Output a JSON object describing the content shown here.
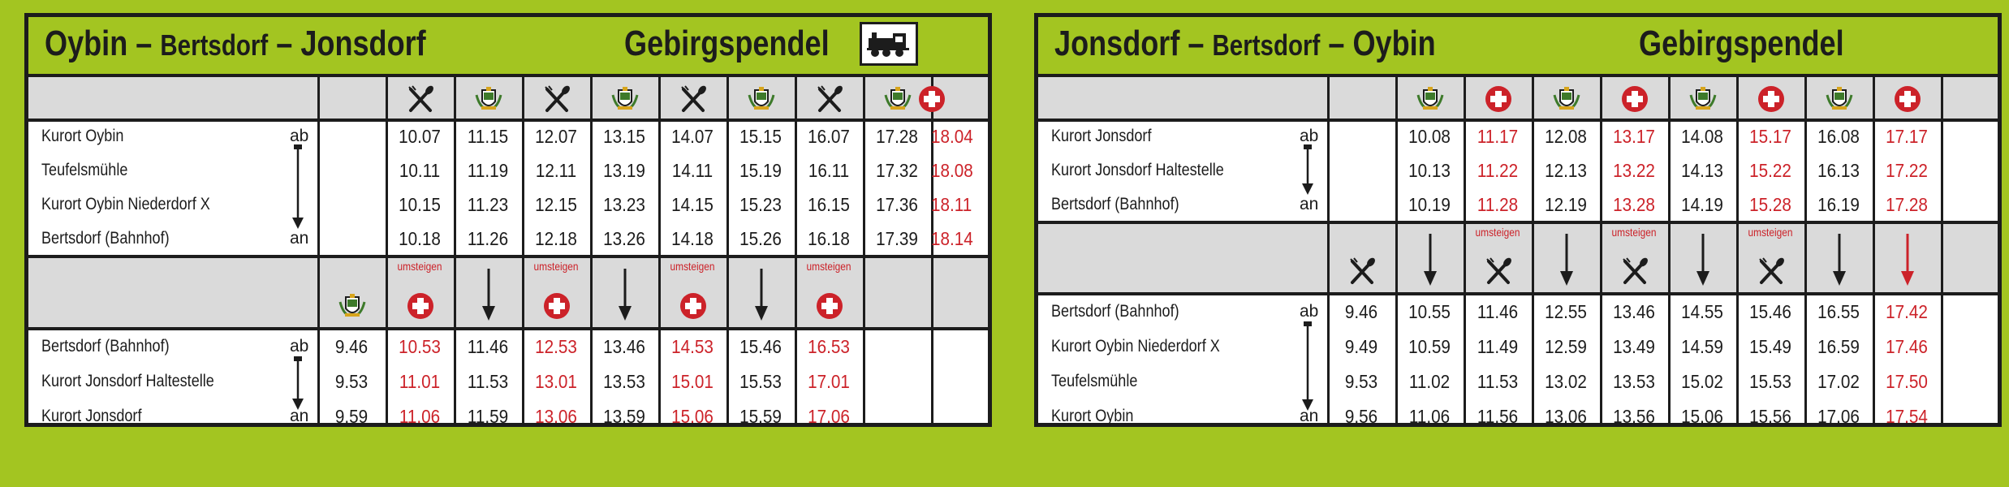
{
  "left": {
    "route_main": "Oybin",
    "route_sep1": " – ",
    "route_mid": "Bertsdorf",
    "route_sep2": " – ",
    "route_end": "Jonsdorf",
    "pendel": "Gebirgspendel",
    "loco_icon": "steam-locomotive-icon",
    "header_icons": [
      "utensils",
      "coat-of-arms",
      "utensils",
      "coat-of-arms",
      "utensils",
      "coat-of-arms",
      "utensils",
      "coat-of-arms",
      "red-cross"
    ],
    "top_stations": [
      {
        "name": "Kurort Oybin",
        "mark": "ab"
      },
      {
        "name": "Teufelsmühle",
        "mark": ""
      },
      {
        "name": "Kurort Oybin Niederdorf   X",
        "mark": ""
      },
      {
        "name": "Bertsdorf (Bahnhof)",
        "mark": "an"
      }
    ],
    "top_times": [
      [
        "10.07",
        "11.15",
        "12.07",
        "13.15",
        "14.07",
        "15.15",
        "16.07",
        "17.28",
        "18.04"
      ],
      [
        "10.11",
        "11.19",
        "12.11",
        "13.19",
        "14.11",
        "15.19",
        "16.11",
        "17.32",
        "18.08"
      ],
      [
        "10.15",
        "11.23",
        "12.15",
        "13.23",
        "14.15",
        "15.23",
        "16.15",
        "17.36",
        "18.11"
      ],
      [
        "10.18",
        "11.26",
        "12.18",
        "13.26",
        "14.18",
        "15.26",
        "16.18",
        "17.39",
        "18.14"
      ]
    ],
    "top_red_col": 8,
    "umsteigen": "umsteigen",
    "mid_icons": [
      "coat-of-arms",
      "red-cross",
      "down-arrow",
      "red-cross",
      "down-arrow",
      "red-cross",
      "down-arrow",
      "red-cross",
      "",
      ""
    ],
    "mid_umsteigen": [
      false,
      true,
      false,
      true,
      false,
      true,
      false,
      true,
      false,
      false
    ],
    "bottom_stations": [
      {
        "name": "Bertsdorf (Bahnhof)",
        "mark": "ab"
      },
      {
        "name": "Kurort Jonsdorf Haltestelle",
        "mark": ""
      },
      {
        "name": "Kurort Jonsdorf",
        "mark": "an"
      }
    ],
    "bottom_times": [
      [
        "9.46",
        "10.53",
        "11.46",
        "12.53",
        "13.46",
        "14.53",
        "15.46",
        "16.53",
        "",
        ""
      ],
      [
        "9.53",
        "11.01",
        "11.53",
        "13.01",
        "13.53",
        "15.01",
        "15.53",
        "17.01",
        "",
        ""
      ],
      [
        "9.59",
        "11.06",
        "11.59",
        "13.06",
        "13.59",
        "15.06",
        "15.59",
        "17.06",
        "",
        ""
      ]
    ],
    "bottom_red_cols": [
      1,
      3,
      5,
      7
    ]
  },
  "right": {
    "route_main": "Jonsdorf",
    "route_sep1": " – ",
    "route_mid": "Bertsdorf",
    "route_sep2": " – ",
    "route_end": "Oybin",
    "pendel": "Gebirgspendel",
    "header_icons": [
      "coat-of-arms",
      "red-cross",
      "coat-of-arms",
      "red-cross",
      "coat-of-arms",
      "red-cross",
      "coat-of-arms",
      "red-cross",
      ""
    ],
    "top_stations": [
      {
        "name": "Kurort Jonsdorf",
        "mark": "ab"
      },
      {
        "name": "Kurort Jonsdorf Haltestelle",
        "mark": ""
      },
      {
        "name": "Bertsdorf (Bahnhof)",
        "mark": "an"
      }
    ],
    "top_times": [
      [
        "10.08",
        "11.17",
        "12.08",
        "13.17",
        "14.08",
        "15.17",
        "16.08",
        "17.17",
        ""
      ],
      [
        "10.13",
        "11.22",
        "12.13",
        "13.22",
        "14.13",
        "15.22",
        "16.13",
        "17.22",
        ""
      ],
      [
        "10.19",
        "11.28",
        "12.19",
        "13.28",
        "14.19",
        "15.28",
        "16.19",
        "17.28",
        ""
      ]
    ],
    "top_red_cols": [
      1,
      3,
      5,
      7
    ],
    "umsteigen": "umsteigen",
    "mid_icons": [
      "utensils",
      "down-arrow",
      "utensils",
      "down-arrow",
      "utensils",
      "down-arrow",
      "utensils",
      "down-arrow",
      "red-down-arrow",
      ""
    ],
    "mid_umsteigen": [
      false,
      false,
      true,
      false,
      true,
      false,
      true,
      false,
      false,
      false
    ],
    "bottom_stations": [
      {
        "name": "Bertsdorf (Bahnhof)",
        "mark": "ab"
      },
      {
        "name": "Kurort Oybin Niederdorf   X",
        "mark": ""
      },
      {
        "name": "Teufelsmühle",
        "mark": ""
      },
      {
        "name": "Kurort Oybin",
        "mark": "an"
      }
    ],
    "bottom_times": [
      [
        "9.46",
        "10.55",
        "11.46",
        "12.55",
        "13.46",
        "14.55",
        "15.46",
        "16.55",
        "17.42",
        ""
      ],
      [
        "9.49",
        "10.59",
        "11.49",
        "12.59",
        "13.49",
        "14.59",
        "15.49",
        "16.59",
        "17.46",
        ""
      ],
      [
        "9.53",
        "11.02",
        "11.53",
        "13.02",
        "13.53",
        "15.02",
        "15.53",
        "17.02",
        "17.50",
        ""
      ],
      [
        "9.56",
        "11.06",
        "11.56",
        "13.06",
        "13.56",
        "15.06",
        "15.56",
        "17.06",
        "17.54",
        ""
      ]
    ],
    "bottom_red_col": 8
  },
  "colors": {
    "red": "#cc2229",
    "green": "#a3c521",
    "gray": "#dadada",
    "dark": "#1c1c1c"
  }
}
